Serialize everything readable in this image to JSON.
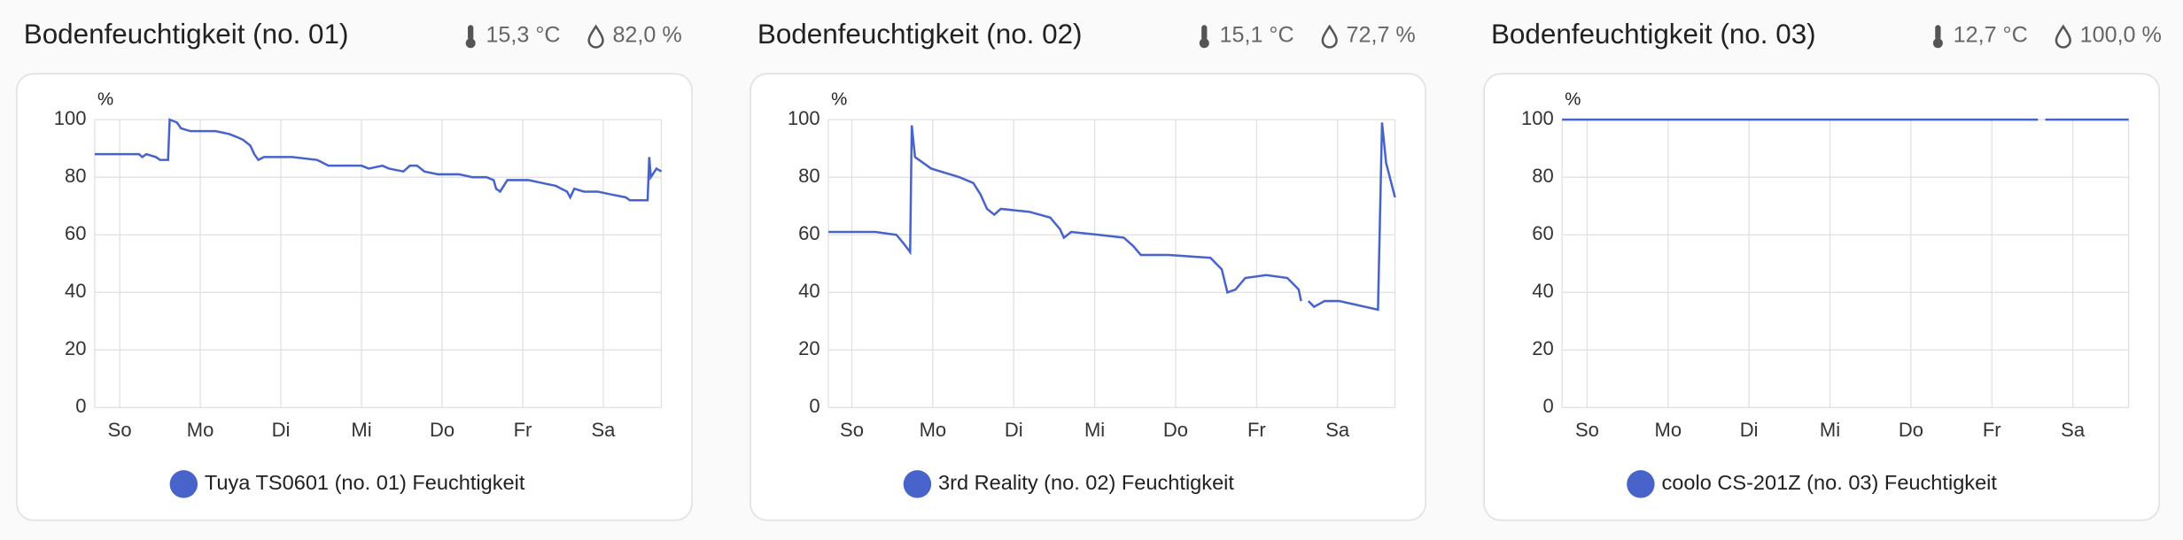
{
  "chart_data": [
    {
      "type": "line",
      "title": "Bodenfeuchtigkeit (no. 01)",
      "temperature": "15,3 °C",
      "humidity": "82,0 %",
      "y_unit": "%",
      "x": [
        -0.31,
        0.24,
        0.28,
        0.33,
        0.45,
        0.5,
        0.6,
        0.62,
        0.71,
        0.76,
        0.88,
        1.19,
        1.36,
        1.45,
        1.53,
        1.62,
        1.67,
        1.72,
        1.79,
        2.14,
        2.45,
        2.52,
        2.59,
        3,
        3.09,
        3.26,
        3.34,
        3.52,
        3.6,
        3.69,
        3.78,
        3.95,
        4.21,
        4.38,
        4.55,
        4.64,
        4.67,
        4.72,
        4.81,
        5.07,
        5.24,
        5.41,
        5.55,
        5.59,
        5.64,
        5.76,
        5.93,
        6.1,
        6.28,
        6.33,
        6.55,
        6.57,
        6.59,
        6.66,
        6.72
      ],
      "series": [
        {
          "name": "Tuya TS0601 (no. 01) Feuchtigkeit",
          "color": "#4863c9",
          "values": [
            88,
            88,
            87,
            88,
            87,
            86,
            86,
            100,
            99,
            97,
            96,
            96,
            95,
            94,
            93,
            91,
            88,
            86,
            87,
            87,
            86,
            85,
            84,
            84,
            83,
            84,
            83,
            82,
            84,
            84,
            82,
            81,
            81,
            80,
            80,
            79,
            76,
            75,
            79,
            79,
            78,
            77,
            75,
            73,
            76,
            75,
            75,
            74,
            73,
            72,
            72,
            87,
            80,
            83,
            82
          ]
        }
      ],
      "xlim": [
        -0.31,
        6.72
      ],
      "ylim": [
        0,
        100
      ],
      "xticks": [
        {
          "value": 0,
          "label": "So"
        },
        {
          "value": 1,
          "label": "Mo"
        },
        {
          "value": 2,
          "label": "Di"
        },
        {
          "value": 3,
          "label": "Mi"
        },
        {
          "value": 4,
          "label": "Do"
        },
        {
          "value": 5,
          "label": "Fr"
        },
        {
          "value": 6,
          "label": "Sa"
        }
      ],
      "yticks": [
        0,
        20,
        40,
        60,
        80,
        100
      ],
      "grid": true
    },
    {
      "type": "line",
      "title": "Bodenfeuchtigkeit (no. 02)",
      "temperature": "15,1 °C",
      "humidity": "72,7 %",
      "y_unit": "%",
      "x": [
        -0.29,
        -0.05,
        0.29,
        0.55,
        0.64,
        0.72,
        0.74,
        0.78,
        0.98,
        1.33,
        1.5,
        1.59,
        1.67,
        1.76,
        1.84,
        2.19,
        2.45,
        2.57,
        2.62,
        2.71,
        3.05,
        3.36,
        3.48,
        3.57,
        3.91,
        4.43,
        4.57,
        4.64,
        4.74,
        4.86,
        5.12,
        5.38,
        5.52,
        5.55,
        5.6,
        5.64,
        5.71,
        5.84,
        6.02,
        6.5,
        6.55,
        6.6,
        6.71
      ],
      "series": [
        {
          "name": "3rd Reality (no. 02) Feuchtigkeit",
          "color": "#4863c9",
          "values": [
            61,
            61,
            61,
            60,
            57,
            54,
            98,
            87,
            83,
            80,
            78,
            74,
            69,
            67,
            69,
            68,
            66,
            62,
            59,
            61,
            60,
            59,
            56,
            53,
            53,
            52,
            48,
            40,
            41,
            45,
            46,
            45,
            41,
            37,
            null,
            37,
            35,
            37,
            37,
            34,
            99,
            85,
            73
          ]
        }
      ],
      "xlim": [
        -0.29,
        6.71
      ],
      "ylim": [
        0,
        100
      ],
      "xticks": [
        {
          "value": 0,
          "label": "So"
        },
        {
          "value": 1,
          "label": "Mo"
        },
        {
          "value": 2,
          "label": "Di"
        },
        {
          "value": 3,
          "label": "Mi"
        },
        {
          "value": 4,
          "label": "Do"
        },
        {
          "value": 5,
          "label": "Fr"
        },
        {
          "value": 6,
          "label": "Sa"
        }
      ],
      "yticks": [
        0,
        20,
        40,
        60,
        80,
        100
      ],
      "grid": true
    },
    {
      "type": "line",
      "title": "Bodenfeuchtigkeit (no. 03)",
      "temperature": "12,7 °C",
      "humidity": "100,0 %",
      "y_unit": "%",
      "x": [
        -0.31,
        5.57,
        5.6,
        5.66,
        6.69
      ],
      "series": [
        {
          "name": "coolo CS-201Z (no. 03) Feuchtigkeit",
          "color": "#4863c9",
          "values": [
            100,
            100,
            null,
            100,
            100
          ]
        }
      ],
      "xlim": [
        -0.31,
        6.69
      ],
      "ylim": [
        0,
        100
      ],
      "xticks": [
        {
          "value": 0,
          "label": "So"
        },
        {
          "value": 1,
          "label": "Mo"
        },
        {
          "value": 2,
          "label": "Di"
        },
        {
          "value": 3,
          "label": "Mi"
        },
        {
          "value": 4,
          "label": "Do"
        },
        {
          "value": 5,
          "label": "Fr"
        },
        {
          "value": 6,
          "label": "Sa"
        }
      ],
      "yticks": [
        0,
        20,
        40,
        60,
        80,
        100
      ],
      "grid": true
    }
  ]
}
